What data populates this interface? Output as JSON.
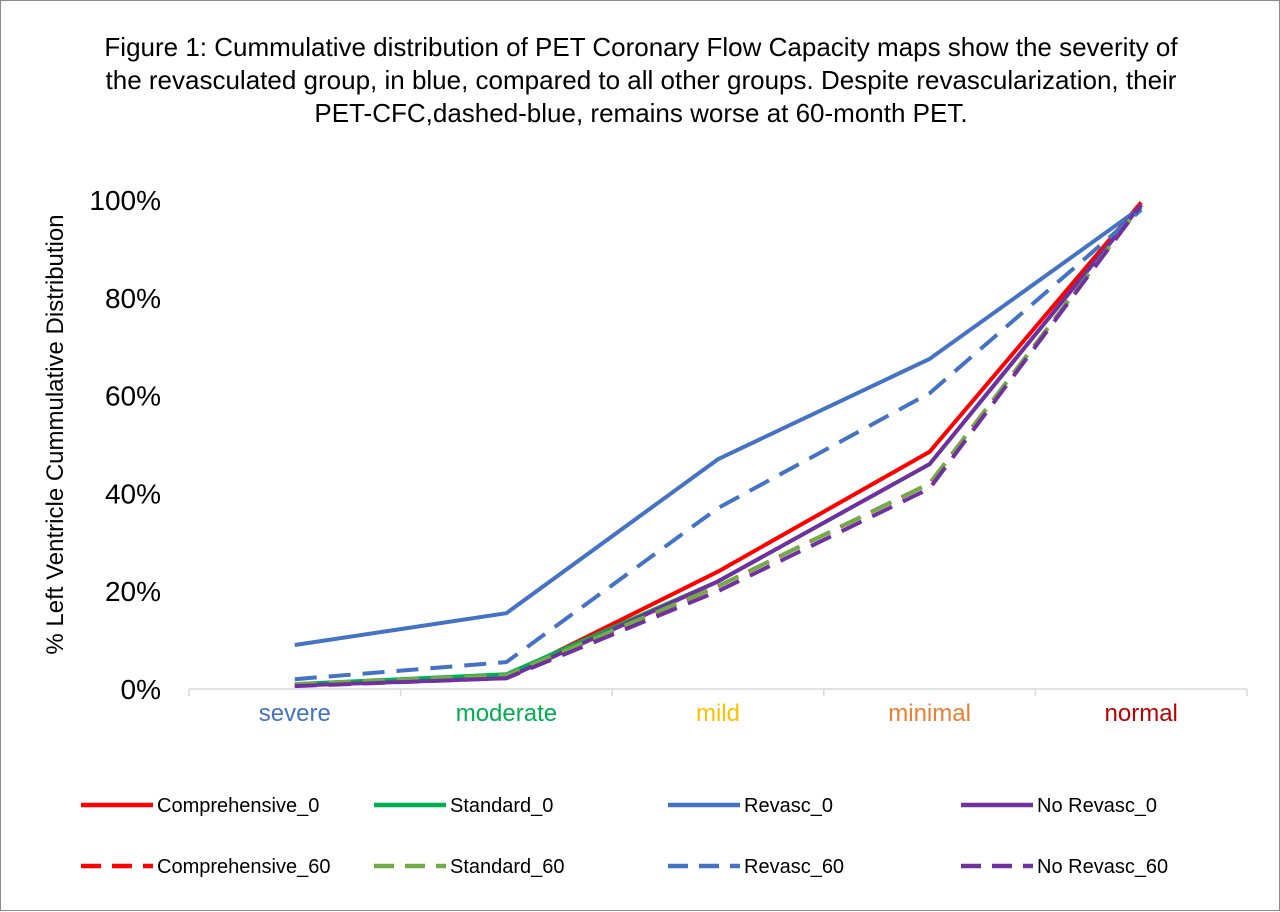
{
  "chart_data": {
    "type": "line",
    "title": "Figure 1: Cummulative distribution of PET Coronary Flow Capacity maps show the severity of the revasculated group, in blue, compared to all other groups. Despite revascularization, their PET-CFC,dashed-blue, remains worse at 60-month PET.",
    "xlabel": "",
    "ylabel": "% Left Ventricle Cummulative Distribution",
    "ylim": [
      0,
      100
    ],
    "y_ticks": [
      "0%",
      "20%",
      "40%",
      "60%",
      "80%",
      "100%"
    ],
    "grid": false,
    "legend_position": "bottom",
    "categories": [
      {
        "label": "severe",
        "color": "#4472C4"
      },
      {
        "label": "moderate",
        "color": "#00B050"
      },
      {
        "label": "mild",
        "color": "#FFC000"
      },
      {
        "label": "minimal",
        "color": "#ED7D31"
      },
      {
        "label": "normal",
        "color": "#C00000"
      }
    ],
    "series": [
      {
        "name": "Comprehensive_0",
        "color": "#FF0000",
        "dash": false,
        "values": [
          0.8,
          2.5,
          24,
          48.5,
          99.5
        ]
      },
      {
        "name": "Standard_0",
        "color": "#00B050",
        "dash": false,
        "values": [
          1,
          3,
          22,
          46,
          99
        ]
      },
      {
        "name": "Revasc_0",
        "color": "#4472C4",
        "dash": false,
        "values": [
          9,
          15.5,
          47,
          67.5,
          98.5
        ]
      },
      {
        "name": "No Revasc_0",
        "color": "#7030A0",
        "dash": false,
        "values": [
          0.7,
          2.2,
          22,
          46,
          99
        ]
      },
      {
        "name": "Comprehensive_60",
        "color": "#FF0000",
        "dash": true,
        "values": [
          0.8,
          2.5,
          21,
          42,
          99
        ]
      },
      {
        "name": "Standard_60",
        "color": "#70AD47",
        "dash": true,
        "values": [
          1,
          2.8,
          21,
          42,
          99
        ]
      },
      {
        "name": "Revasc_60",
        "color": "#4472C4",
        "dash": true,
        "values": [
          2,
          5.5,
          37,
          60.5,
          98
        ]
      },
      {
        "name": "No Revasc_60",
        "color": "#7030A0",
        "dash": true,
        "values": [
          0.6,
          2.2,
          20,
          41,
          99
        ]
      }
    ]
  }
}
